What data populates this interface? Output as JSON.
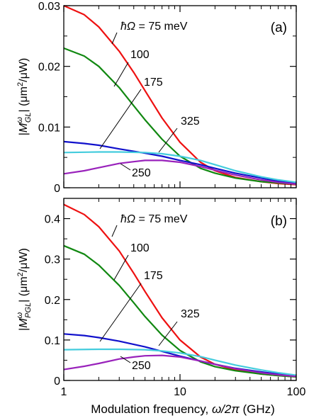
{
  "x_axis": {
    "label_main": "Modulation frequency, ",
    "label_sym": "ω/2π",
    "label_unit": " (GHz)"
  },
  "chart_data": [
    {
      "type": "line",
      "panel_label": "(a)",
      "ylabel": {
        "pre": "|",
        "sym": "M",
        "sup": "ω",
        "sub": "GL",
        "post": "| (μm",
        "post_sup": "2",
        "tail": "/μW)"
      },
      "xscale": "log",
      "xlim": [
        1,
        100
      ],
      "ylim": [
        0,
        0.03
      ],
      "y_ticks": [
        {
          "v": 0,
          "label": "0"
        },
        {
          "v": 0.01,
          "label": "0.01"
        },
        {
          "v": 0.02,
          "label": "0.02"
        },
        {
          "v": 0.03,
          "label": "0.03"
        }
      ],
      "x_ticks": [
        {
          "v": 1,
          "label": "1"
        },
        {
          "v": 10,
          "label": "10"
        },
        {
          "v": 100,
          "label": "100"
        }
      ],
      "grid": false,
      "series": [
        {
          "name": "ħΩ = 75 meV",
          "color": "#ee1111",
          "x": [
            1,
            1.5,
            2,
            3,
            4,
            5,
            7,
            10,
            15,
            20,
            30,
            50,
            70,
            100
          ],
          "y": [
            0.03,
            0.0285,
            0.0265,
            0.0225,
            0.019,
            0.016,
            0.0115,
            0.0075,
            0.0042,
            0.0028,
            0.0017,
            0.001,
            0.0007,
            0.0005
          ]
        },
        {
          "name": "100",
          "color": "#118811",
          "x": [
            1,
            1.5,
            2,
            3,
            4,
            5,
            7,
            10,
            15,
            20,
            30,
            50,
            70,
            100
          ],
          "y": [
            0.023,
            0.0217,
            0.02,
            0.0165,
            0.0135,
            0.0112,
            0.008,
            0.0052,
            0.0032,
            0.0024,
            0.0016,
            0.001,
            0.0008,
            0.0006
          ]
        },
        {
          "name": "175",
          "color": "#1111cc",
          "x": [
            1,
            1.5,
            2,
            3,
            5,
            7,
            10,
            15,
            20,
            30,
            50,
            70,
            100
          ],
          "y": [
            0.0076,
            0.0073,
            0.007,
            0.0064,
            0.0057,
            0.0052,
            0.0045,
            0.0038,
            0.0032,
            0.0024,
            0.0016,
            0.0011,
            0.0008
          ]
        },
        {
          "name": "325",
          "color": "#44ccdd",
          "x": [
            1,
            2,
            3,
            5,
            7,
            10,
            15,
            20,
            30,
            50,
            70,
            100
          ],
          "y": [
            0.0058,
            0.0059,
            0.0059,
            0.0058,
            0.0056,
            0.0052,
            0.0045,
            0.0038,
            0.0028,
            0.0018,
            0.0013,
            0.0009
          ]
        },
        {
          "name": "250",
          "color": "#9922bb",
          "x": [
            1,
            1.5,
            2,
            3,
            4,
            5,
            7,
            10,
            15,
            20,
            30,
            50,
            70,
            100
          ],
          "y": [
            0.0023,
            0.0028,
            0.0033,
            0.004,
            0.0043,
            0.0045,
            0.0045,
            0.0042,
            0.0035,
            0.0029,
            0.0021,
            0.0013,
            0.0009,
            0.0006
          ]
        }
      ]
    },
    {
      "type": "line",
      "panel_label": "(b)",
      "ylabel": {
        "pre": "|",
        "sym": "M",
        "sup": "ω",
        "sub": "PGL",
        "post": "| (μm",
        "post_sup": "2",
        "tail": "/μW)"
      },
      "xscale": "log",
      "xlim": [
        1,
        100
      ],
      "ylim": [
        0,
        0.45
      ],
      "y_ticks": [
        {
          "v": 0,
          "label": "0"
        },
        {
          "v": 0.1,
          "label": "0.1"
        },
        {
          "v": 0.2,
          "label": "0.2"
        },
        {
          "v": 0.3,
          "label": "0.3"
        },
        {
          "v": 0.4,
          "label": "0.4"
        }
      ],
      "x_ticks": [
        {
          "v": 1,
          "label": "1"
        },
        {
          "v": 10,
          "label": "10"
        },
        {
          "v": 100,
          "label": "100"
        }
      ],
      "grid": false,
      "series": [
        {
          "name": "ħΩ = 75 meV",
          "color": "#ee1111",
          "x": [
            1,
            1.5,
            2,
            3,
            4,
            5,
            7,
            10,
            15,
            20,
            30,
            50,
            70,
            100
          ],
          "y": [
            0.435,
            0.41,
            0.38,
            0.32,
            0.265,
            0.22,
            0.155,
            0.1,
            0.058,
            0.04,
            0.026,
            0.016,
            0.012,
            0.009
          ]
        },
        {
          "name": "100",
          "color": "#118811",
          "x": [
            1,
            1.5,
            2,
            3,
            4,
            5,
            7,
            10,
            15,
            20,
            30,
            50,
            70,
            100
          ],
          "y": [
            0.333,
            0.312,
            0.285,
            0.235,
            0.192,
            0.158,
            0.112,
            0.074,
            0.046,
            0.034,
            0.024,
            0.016,
            0.012,
            0.009
          ]
        },
        {
          "name": "175",
          "color": "#1111cc",
          "x": [
            1,
            1.5,
            2,
            3,
            5,
            7,
            10,
            15,
            20,
            30,
            50,
            70,
            100
          ],
          "y": [
            0.115,
            0.111,
            0.106,
            0.097,
            0.083,
            0.072,
            0.06,
            0.048,
            0.04,
            0.03,
            0.021,
            0.016,
            0.012
          ]
        },
        {
          "name": "325",
          "color": "#44ccdd",
          "x": [
            1,
            2,
            3,
            5,
            7,
            10,
            15,
            20,
            30,
            50,
            70,
            100
          ],
          "y": [
            0.076,
            0.077,
            0.077,
            0.076,
            0.073,
            0.068,
            0.059,
            0.05,
            0.038,
            0.026,
            0.019,
            0.013
          ]
        },
        {
          "name": "250",
          "color": "#9922bb",
          "x": [
            1,
            1.5,
            2,
            3,
            4,
            5,
            7,
            10,
            15,
            20,
            30,
            50,
            70,
            100
          ],
          "y": [
            0.027,
            0.035,
            0.042,
            0.053,
            0.058,
            0.061,
            0.062,
            0.058,
            0.048,
            0.04,
            0.029,
            0.019,
            0.014,
            0.01
          ]
        }
      ],
      "annotations": []
    }
  ],
  "annotations": [
    {
      "text_pre": "ħΩ",
      "text_post": " = 75 meV"
    },
    {
      "text": "100"
    },
    {
      "text": "175"
    },
    {
      "text": "325"
    },
    {
      "text": "250"
    }
  ]
}
